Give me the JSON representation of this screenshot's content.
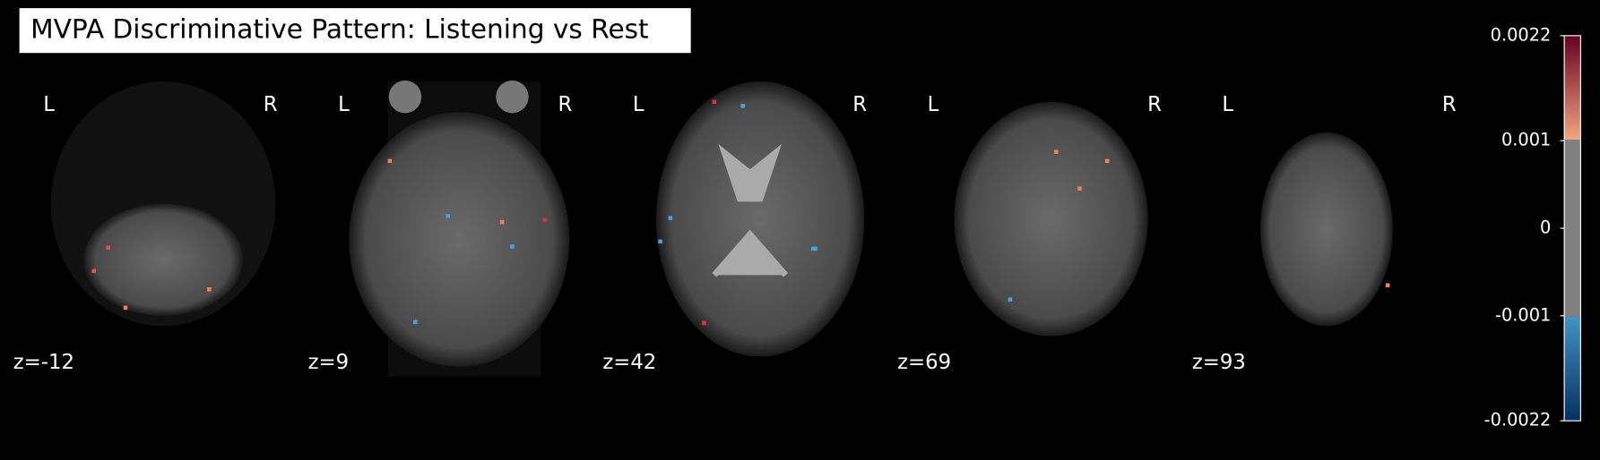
{
  "title": "MVPA Discriminative Pattern: Listening vs Rest",
  "left_label": "L",
  "right_label": "R",
  "slices": [
    "z=-12",
    "z=9",
    "z=42",
    "z=69",
    "z=93"
  ],
  "colorbar": {
    "lim": [
      -0.0022,
      0.0022
    ],
    "ticks": [
      0.0022,
      0.001,
      0,
      -0.001,
      -0.0022
    ]
  }
}
